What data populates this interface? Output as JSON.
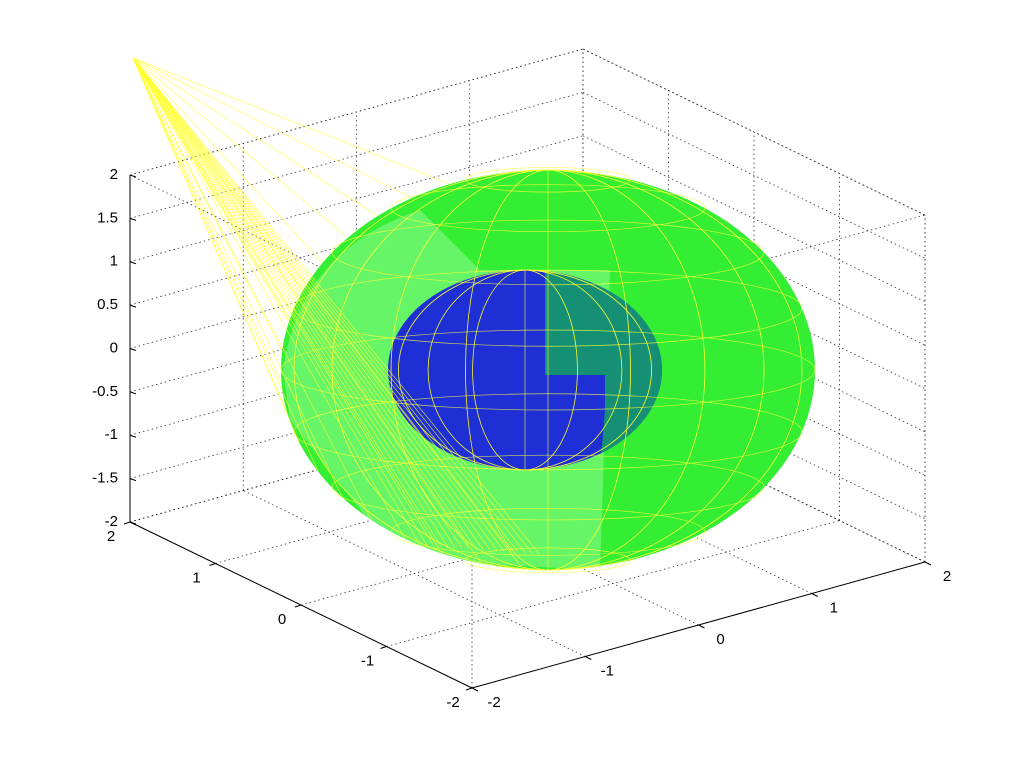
{
  "chart_data": {
    "type": "surface3d",
    "xlim": [
      -2,
      2
    ],
    "xticks": [
      -2,
      -1,
      0,
      1,
      2
    ],
    "ylim": [
      -2,
      2
    ],
    "yticks": [
      -2,
      -1,
      0,
      1,
      2
    ],
    "zlim": [
      -2,
      2
    ],
    "zticks": [
      -2,
      -1.5,
      -1,
      -0.5,
      0,
      0.5,
      1,
      1.5,
      2
    ],
    "grid": true
  }
}
